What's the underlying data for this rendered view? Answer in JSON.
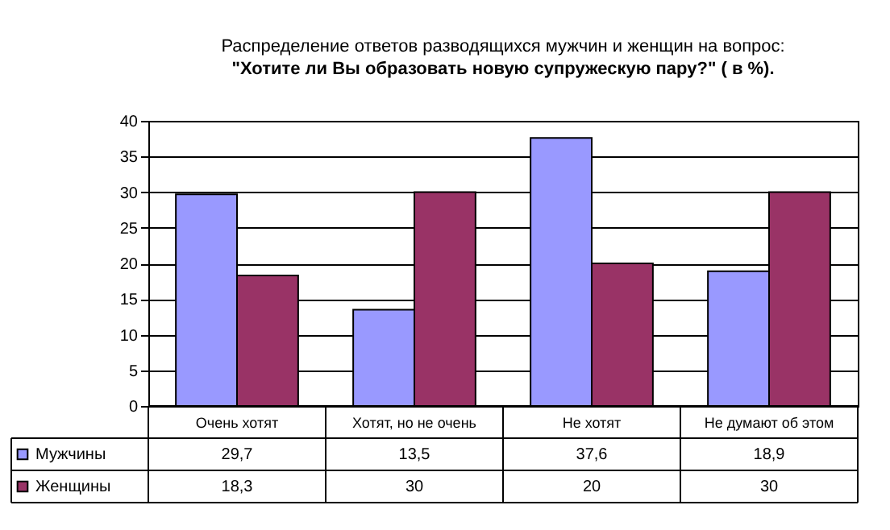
{
  "chart_data": {
    "type": "bar",
    "title": "Распределение ответов разводящихся мужчин и женщин на вопрос:",
    "subtitle": "\"Хотите ли Вы образовать новую супружескую пару?\" ( в %).",
    "categories": [
      "Очень хотят",
      "Хотят, но не очень",
      "Не хотят",
      "Не думают об этом"
    ],
    "series": [
      {
        "name": "Мужчины",
        "color": "#9999ff",
        "values": [
          29.7,
          13.5,
          37.6,
          18.9
        ],
        "value_labels": [
          "29,7",
          "13,5",
          "37,6",
          "18,9"
        ]
      },
      {
        "name": "Женщины",
        "color": "#993366",
        "values": [
          18.3,
          30,
          20,
          30
        ],
        "value_labels": [
          "18,3",
          "30",
          "20",
          "30"
        ]
      }
    ],
    "ylim": [
      0,
      40
    ],
    "yticks": [
      0,
      5,
      10,
      15,
      20,
      25,
      30,
      35,
      40
    ],
    "grid": "y",
    "legend": "bottom left"
  }
}
